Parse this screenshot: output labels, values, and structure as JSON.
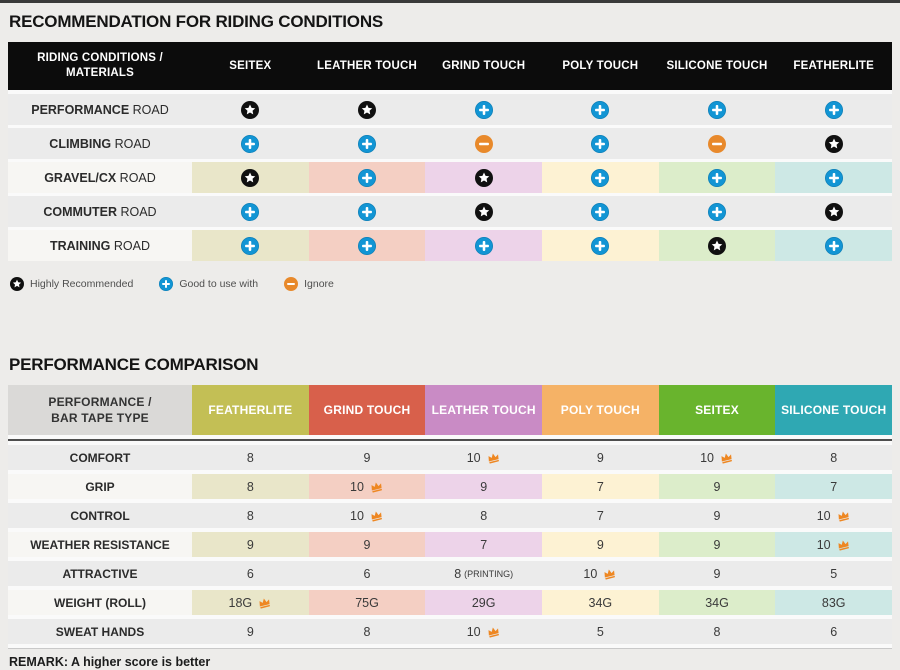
{
  "icon_colors": {
    "star_bg": "#101010",
    "star_glyph": "#ffffff",
    "plus_bg": "#1295d4",
    "plus_rim": "#0d7fb7",
    "plus_glyph": "#ffffff",
    "minus_bg": "#e8892b",
    "minus_glyph": "#ffffff",
    "crown": "#ee8722"
  },
  "recommendation_table": {
    "title": "RECOMMENDATION FOR RIDING CONDITIONS",
    "header": {
      "label_line1": "RIDING CONDITIONS /",
      "label_line2": "MATERIALS",
      "columns": [
        "SEITEX",
        "LEATHER TOUCH",
        "GRIND TOUCH",
        "POLY TOUCH",
        "SILICONE TOUCH",
        "FEATHERLITE"
      ]
    },
    "column_tints": [
      "#e9e6c9",
      "#f4cfc3",
      "#edd3e9",
      "#fdf2d3",
      "#dcedca",
      "#cde8e5"
    ],
    "rows": [
      {
        "label_bold": "PERFORMANCE",
        "label_rest": "ROAD",
        "tinted": false,
        "cells": [
          "star",
          "star",
          "plus",
          "plus",
          "plus",
          "plus"
        ]
      },
      {
        "label_bold": "CLIMBING",
        "label_rest": "ROAD",
        "tinted": false,
        "cells": [
          "plus",
          "plus",
          "minus",
          "plus",
          "minus",
          "star"
        ]
      },
      {
        "label_bold": "GRAVEL/CX",
        "label_rest": "ROAD",
        "tinted": true,
        "cells": [
          "star",
          "plus",
          "star",
          "plus",
          "plus",
          "plus"
        ]
      },
      {
        "label_bold": "COMMUTER",
        "label_rest": "ROAD",
        "tinted": false,
        "cells": [
          "plus",
          "plus",
          "star",
          "plus",
          "plus",
          "star"
        ]
      },
      {
        "label_bold": "TRAINING",
        "label_rest": "ROAD",
        "tinted": true,
        "cells": [
          "plus",
          "plus",
          "plus",
          "plus",
          "star",
          "plus"
        ]
      }
    ],
    "legend": [
      {
        "icon": "star",
        "label": "Highly Recommended"
      },
      {
        "icon": "plus",
        "label": "Good to use with"
      },
      {
        "icon": "minus",
        "label": "Ignore"
      }
    ]
  },
  "performance_table": {
    "title": "PERFORMANCE COMPARISON",
    "header": {
      "label_line1": "PERFORMANCE /",
      "label_line2": "BAR TAPE TYPE",
      "columns": [
        {
          "name": "FEATHERLITE",
          "color": "#c3bf55"
        },
        {
          "name": "GRIND TOUCH",
          "color": "#d8604b"
        },
        {
          "name": "LEATHER TOUCH",
          "color": "#c98bc5"
        },
        {
          "name": "POLY TOUCH",
          "color": "#f5b266"
        },
        {
          "name": "SEITEX",
          "color": "#69b42d"
        },
        {
          "name": "SILICONE TOUCH",
          "color": "#2fa8b3"
        }
      ]
    },
    "column_tints": [
      "#e9e6c9",
      "#f4cfc3",
      "#edd3e9",
      "#fdf2d3",
      "#dcedca",
      "#cde8e5"
    ],
    "rows": [
      {
        "label": "COMFORT",
        "tinted": false,
        "cells": [
          {
            "text": "8"
          },
          {
            "text": "9"
          },
          {
            "text": "10",
            "crown": true
          },
          {
            "text": "9"
          },
          {
            "text": "10",
            "crown": true
          },
          {
            "text": "8"
          }
        ]
      },
      {
        "label": "GRIP",
        "tinted": true,
        "cells": [
          {
            "text": "8"
          },
          {
            "text": "10",
            "crown": true
          },
          {
            "text": "9"
          },
          {
            "text": "7"
          },
          {
            "text": "9"
          },
          {
            "text": "7"
          }
        ]
      },
      {
        "label": "CONTROL",
        "tinted": false,
        "cells": [
          {
            "text": "8"
          },
          {
            "text": "10",
            "crown": true
          },
          {
            "text": "8"
          },
          {
            "text": "7"
          },
          {
            "text": "9"
          },
          {
            "text": "10",
            "crown": true
          }
        ]
      },
      {
        "label": "WEATHER RESISTANCE",
        "tinted": true,
        "cells": [
          {
            "text": "9"
          },
          {
            "text": "9"
          },
          {
            "text": "7"
          },
          {
            "text": "9"
          },
          {
            "text": "9"
          },
          {
            "text": "10",
            "crown": true
          }
        ]
      },
      {
        "label": "ATTRACTIVE",
        "tinted": false,
        "cells": [
          {
            "text": "6"
          },
          {
            "text": "6"
          },
          {
            "text": "8",
            "suffix": "(PRINTING)"
          },
          {
            "text": "10",
            "crown": true
          },
          {
            "text": "9"
          },
          {
            "text": "5"
          }
        ]
      },
      {
        "label": "WEIGHT (ROLL)",
        "tinted": true,
        "cells": [
          {
            "text": "18G",
            "crown": true
          },
          {
            "text": "75G"
          },
          {
            "text": "29G"
          },
          {
            "text": "34G"
          },
          {
            "text": "34G"
          },
          {
            "text": "83G"
          }
        ]
      },
      {
        "label": "SWEAT HANDS",
        "tinted": false,
        "cells": [
          {
            "text": "9"
          },
          {
            "text": "8"
          },
          {
            "text": "10",
            "crown": true
          },
          {
            "text": "5"
          },
          {
            "text": "8"
          },
          {
            "text": "6"
          }
        ]
      }
    ],
    "remark": "REMARK: A higher score is better"
  }
}
